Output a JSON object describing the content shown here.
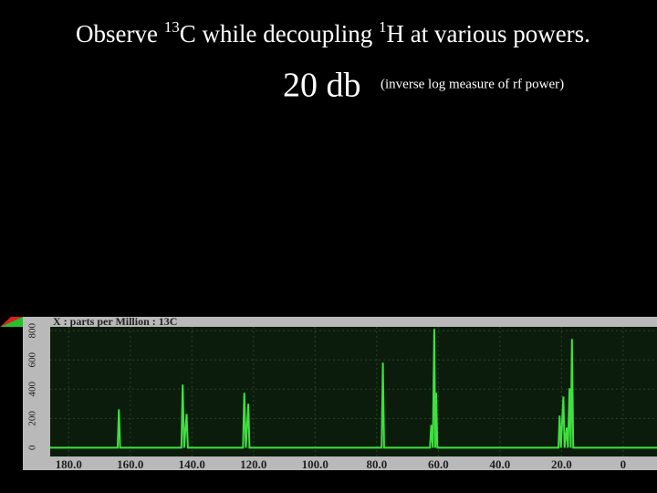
{
  "slide": {
    "title_parts": [
      "Observe ",
      "13",
      "C while decoupling ",
      "1",
      "H at various powers."
    ],
    "power": "20 db",
    "power_note": "(inverse log measure of rf power)"
  },
  "chart_data": {
    "type": "line",
    "x_label": "X : parts per Million : 13C",
    "x": [
      186,
      164.1,
      163.7,
      163.3,
      143.4,
      143.0,
      142.5,
      141.7,
      141.3,
      123.4,
      123.0,
      122.5,
      121.7,
      121.3,
      78.4,
      78.0,
      77.6,
      62.7,
      62.3,
      61.8,
      61.3,
      61.0,
      60.7,
      60.3,
      21.0,
      20.6,
      20.2,
      19.4,
      19.0,
      18.3,
      17.9,
      17.4,
      17.0,
      16.6,
      16.2,
      -11
    ],
    "values": [
      0,
      0,
      262,
      0,
      0,
      431,
      0,
      231,
      0,
      0,
      375,
      0,
      300,
      0,
      0,
      581,
      0,
      0,
      156,
      0,
      812,
      0,
      375,
      0,
      0,
      219,
      0,
      350,
      0,
      137,
      0,
      406,
      0,
      744,
      0,
      0
    ],
    "color": "#3ee03e",
    "xlim": [
      186,
      -11
    ],
    "xticks": [
      {
        "value": 180,
        "label": "180.0"
      },
      {
        "value": 160,
        "label": "160.0"
      },
      {
        "value": 140,
        "label": "140.0"
      },
      {
        "value": 120,
        "label": "120.0"
      },
      {
        "value": 100,
        "label": "100.0"
      },
      {
        "value": 80,
        "label": "80.0"
      },
      {
        "value": 60,
        "label": "60.0"
      },
      {
        "value": 40,
        "label": "40.0"
      },
      {
        "value": 20,
        "label": "20.0"
      },
      0
    ],
    "ylim": [
      -60,
      845
    ],
    "yticks": [
      0,
      200,
      400,
      600,
      800
    ],
    "grid": true
  }
}
